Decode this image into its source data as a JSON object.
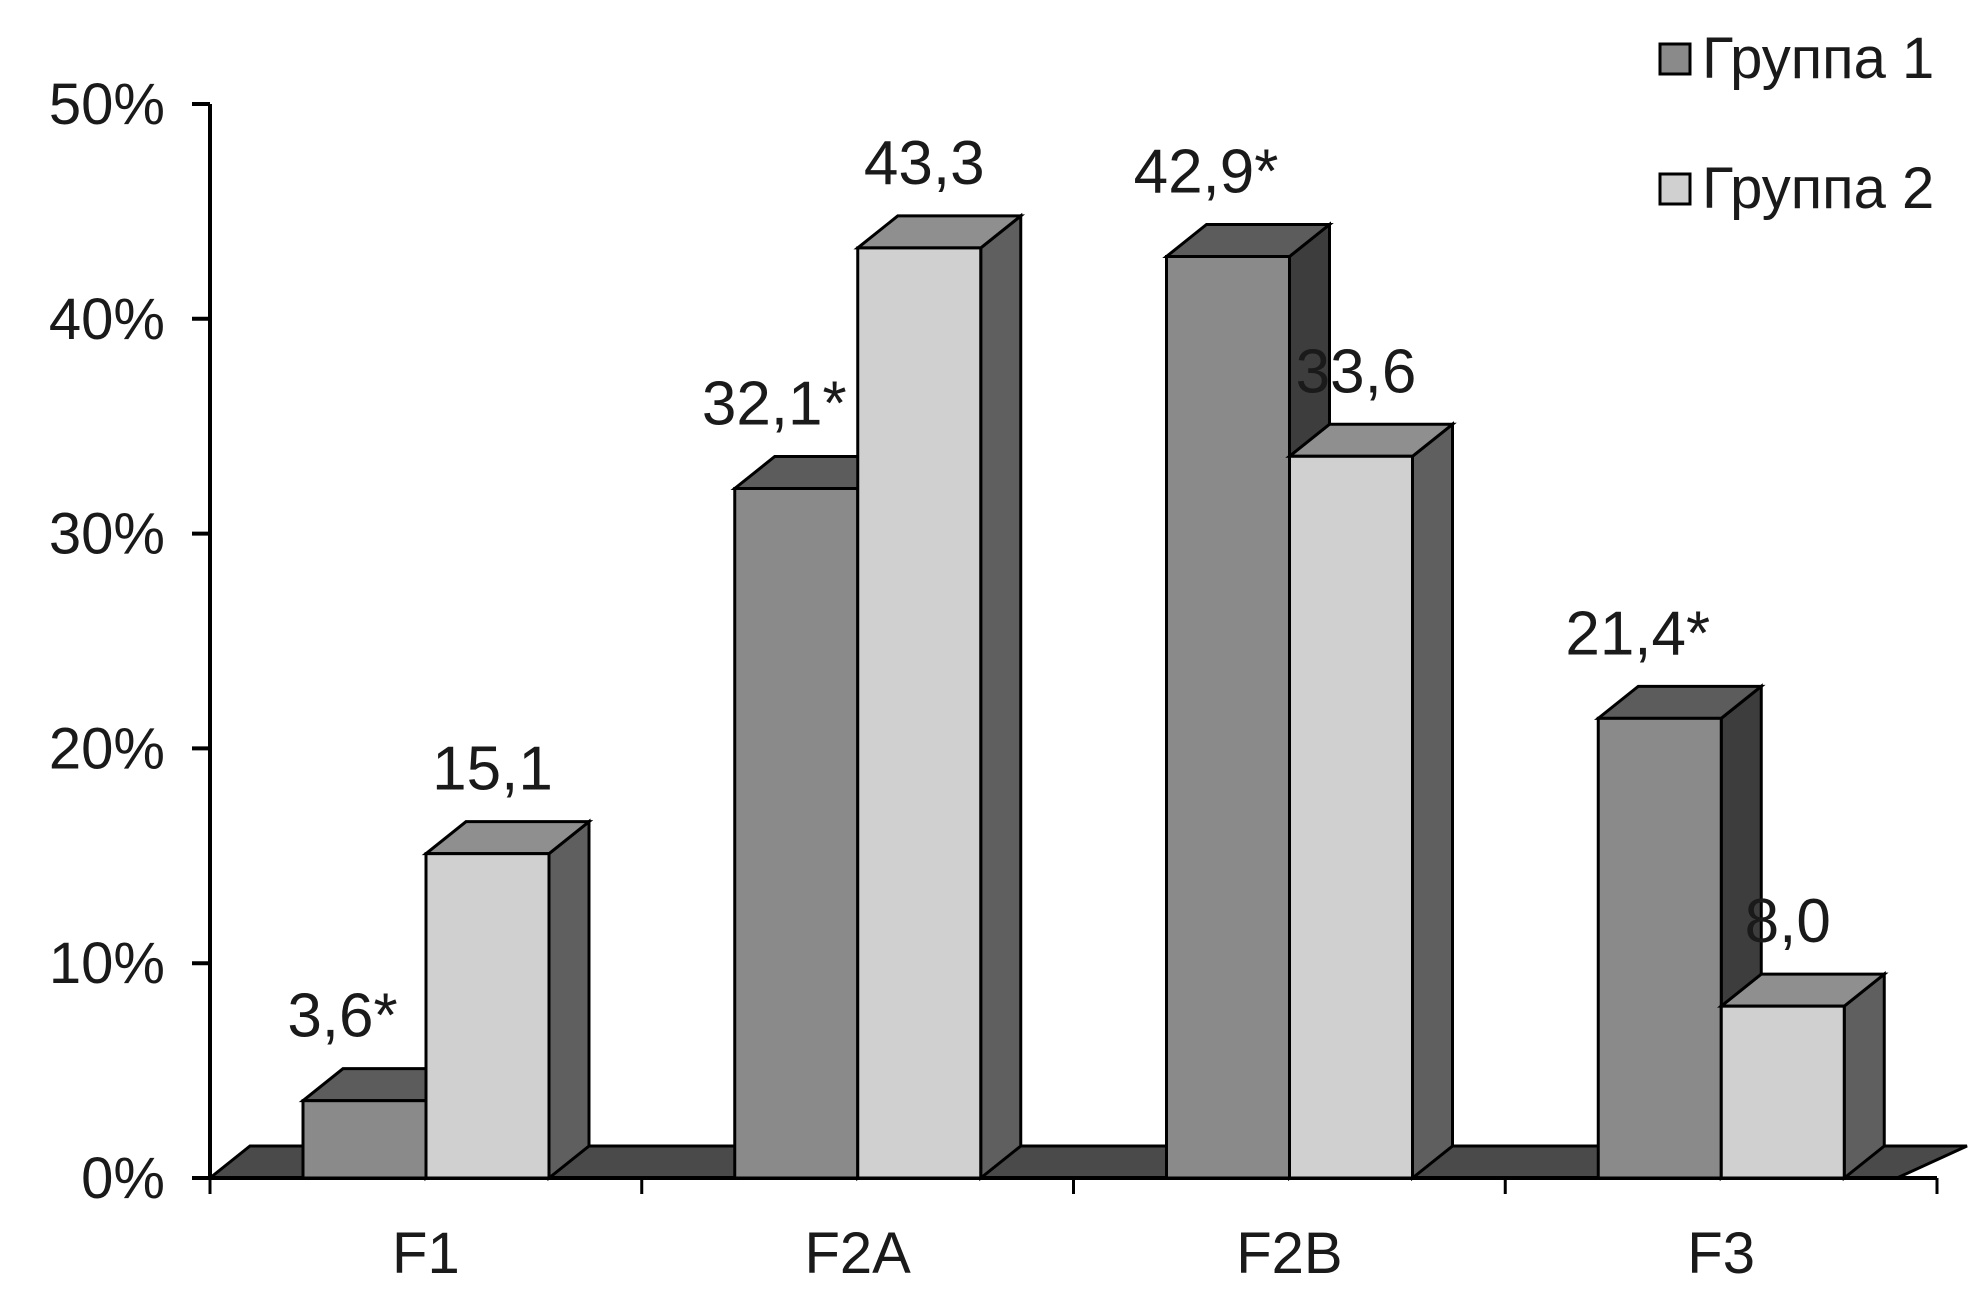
{
  "chart_data": {
    "type": "bar",
    "categories": [
      "F1",
      "F2A",
      "F2B",
      "F3"
    ],
    "series": [
      {
        "name": "Группа 1",
        "values": [
          3.6,
          32.1,
          42.9,
          21.4
        ],
        "labels": [
          "3,6*",
          "32,1*",
          "42,9*",
          "21,4*"
        ],
        "front_color": "#8a8a8a",
        "top_color": "#5c5c5c",
        "side_color": "#3d3d3d"
      },
      {
        "name": "Группа 2",
        "values": [
          15.1,
          43.3,
          33.6,
          8.0
        ],
        "labels": [
          "15,1",
          "43,3",
          "33,6",
          "8,0"
        ],
        "front_color": "#d0d0d0",
        "top_color": "#8f8f8f",
        "side_color": "#5f5f5f"
      }
    ],
    "y_ticks": [
      "0%",
      "10%",
      "20%",
      "30%",
      "40%",
      "50%"
    ],
    "ylim": [
      0,
      50
    ],
    "legend_position": "top-right",
    "grid": false,
    "title": "",
    "xlabel": "",
    "ylabel": ""
  }
}
